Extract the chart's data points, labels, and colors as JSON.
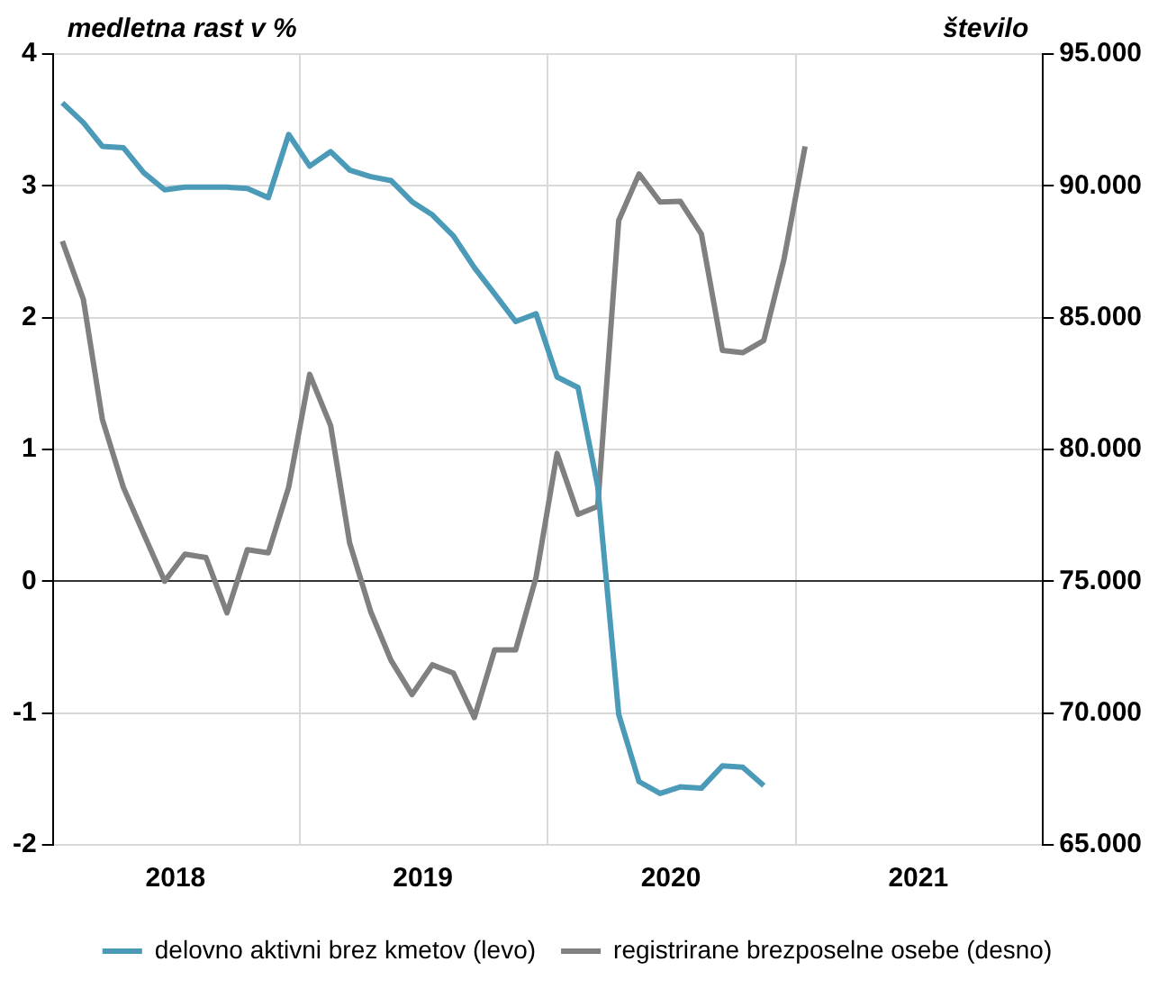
{
  "chart_data": {
    "type": "line",
    "ylabel": "medletna rast v %",
    "y2label": "število",
    "x": [
      "2018-01-15",
      "2018-02-15",
      "2018-03-15",
      "2018-04-15",
      "2018-05-15",
      "2018-06-15",
      "2018-07-15",
      "2018-08-15",
      "2018-09-15",
      "2018-10-15",
      "2018-11-15",
      "2018-12-15",
      "2019-01-15",
      "2019-02-15",
      "2019-03-15",
      "2019-04-15",
      "2019-05-15",
      "2019-06-15",
      "2019-07-15",
      "2019-08-15",
      "2019-09-15",
      "2019-10-15",
      "2019-11-15",
      "2019-12-15",
      "2020-01-15",
      "2020-02-15",
      "2020-03-15",
      "2020-04-15",
      "2020-05-15",
      "2020-06-15",
      "2020-07-15",
      "2020-08-15",
      "2020-09-15",
      "2020-10-15",
      "2020-11-15",
      "2020-12-15",
      "2021-01-15"
    ],
    "series": [
      {
        "name": "delovno aktivni brez kmetov (levo)",
        "color": "#4a9ab8",
        "values": [
          3.63,
          3.48,
          3.3,
          3.29,
          3.1,
          2.97,
          2.99,
          2.99,
          2.99,
          2.98,
          2.91,
          3.39,
          3.15,
          3.26,
          3.12,
          3.07,
          3.04,
          2.88,
          2.78,
          2.62,
          2.38,
          2.18,
          1.97,
          2.03,
          1.55,
          1.47,
          0.72,
          -1.01,
          -1.52,
          -1.61,
          -1.56,
          -1.57,
          -1.4,
          -1.41,
          -1.55,
          null,
          null
        ]
      },
      {
        "name": "registrirane brezposelne osebe (desno)",
        "color": "#808080",
        "axis": "y2",
        "values": [
          87900,
          85700,
          81150,
          78570,
          76800,
          75000,
          76030,
          75900,
          73800,
          76200,
          76080,
          78570,
          82850,
          80900,
          76450,
          73850,
          72000,
          70700,
          71830,
          71520,
          69830,
          72400,
          72400,
          75150,
          79850,
          77540,
          77840,
          88690,
          90450,
          89390,
          89410,
          88170,
          83760,
          83670,
          84130,
          87230,
          91500
        ]
      }
    ],
    "xlim": [
      "2018-01-01",
      "2022-01-01"
    ],
    "xticks": [
      {
        "value": "2018-07-01",
        "label": "2018"
      },
      {
        "value": "2019-01-01",
        "label": null
      },
      {
        "value": "2019-07-01",
        "label": "2019"
      },
      {
        "value": "2020-01-01",
        "label": null
      },
      {
        "value": "2020-07-01",
        "label": "2020"
      },
      {
        "value": "2021-01-01",
        "label": null
      },
      {
        "value": "2021-07-01",
        "label": "2021"
      }
    ],
    "ylim": [
      -2,
      4
    ],
    "yticks": [
      -2,
      -1,
      0,
      1,
      2,
      3,
      4
    ],
    "y2lim": [
      65000,
      95000
    ],
    "y2ticks": [
      {
        "value": 65000,
        "label": "65.000"
      },
      {
        "value": 70000,
        "label": "70.000"
      },
      {
        "value": 75000,
        "label": "75.000"
      },
      {
        "value": 80000,
        "label": "80.000"
      },
      {
        "value": 85000,
        "label": "85.000"
      },
      {
        "value": 90000,
        "label": "90.000"
      },
      {
        "value": 95000,
        "label": "95.000"
      }
    ],
    "grid": true,
    "legend": "bottom",
    "marker": "none",
    "line_style": "solid"
  }
}
